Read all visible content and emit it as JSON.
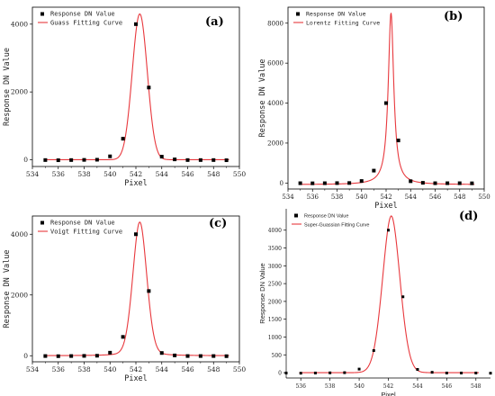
{
  "chart_data": [
    {
      "type": "scatter",
      "panel_label": "(a)",
      "xlabel": "Pixel",
      "ylabel": "Response DN Value",
      "xlim": [
        534,
        550
      ],
      "ylim": [
        -200,
        4500
      ],
      "xticks": [
        534,
        536,
        538,
        540,
        542,
        544,
        546,
        548,
        550
      ],
      "yticks": [
        0,
        2000,
        4000
      ],
      "legend_position": "top-left",
      "series": [
        {
          "name": "Response DN Value",
          "kind": "points",
          "color": "#000000",
          "x": [
            535,
            536,
            537,
            538,
            539,
            540,
            541,
            542,
            543,
            544,
            545,
            546,
            547,
            548,
            549
          ],
          "y": [
            -10,
            -15,
            -10,
            -5,
            0,
            100,
            620,
            4000,
            2130,
            90,
            10,
            -10,
            -10,
            -10,
            -15
          ]
        },
        {
          "name": "Guass Fitting Curve",
          "kind": "curve",
          "color": "#e8383d",
          "model": "gauss",
          "peak": 4300,
          "center": 542.3,
          "width": 0.58,
          "offset": 0
        }
      ]
    },
    {
      "type": "scatter",
      "panel_label": "(b)",
      "xlabel": "Pixel",
      "ylabel": "Response DN Value",
      "xlim": [
        534,
        550
      ],
      "ylim": [
        -300,
        8800
      ],
      "xticks": [
        534,
        536,
        538,
        540,
        542,
        544,
        546,
        548,
        550
      ],
      "yticks": [
        0,
        2000,
        4000,
        6000,
        8000
      ],
      "legend_position": "top-left",
      "series": [
        {
          "name": "Response DN Value",
          "kind": "points",
          "color": "#000000",
          "x": [
            535,
            536,
            537,
            538,
            539,
            540,
            541,
            542,
            543,
            544,
            545,
            546,
            547,
            548,
            549
          ],
          "y": [
            -10,
            -15,
            -10,
            -5,
            0,
            100,
            620,
            4000,
            2130,
            90,
            10,
            -10,
            -10,
            -10,
            -15
          ]
        },
        {
          "name": "Lorentz Fitting Curve",
          "kind": "curve",
          "color": "#e8383d",
          "model": "lorentz",
          "peak": 8600,
          "center": 542.4,
          "width": 0.27,
          "offset": -80
        }
      ]
    },
    {
      "type": "scatter",
      "panel_label": "(c)",
      "xlabel": "Pixel",
      "ylabel": "Response DN Value",
      "xlim": [
        534,
        550
      ],
      "ylim": [
        -200,
        4600
      ],
      "xticks": [
        534,
        536,
        538,
        540,
        542,
        544,
        546,
        548,
        550
      ],
      "yticks": [
        0,
        2000,
        4000
      ],
      "legend_position": "top-left",
      "series": [
        {
          "name": "Response DN Value",
          "kind": "points",
          "color": "#000000",
          "x": [
            535,
            536,
            537,
            538,
            539,
            540,
            541,
            542,
            543,
            544,
            545,
            546,
            547,
            548,
            549
          ],
          "y": [
            -10,
            -15,
            -10,
            -5,
            0,
            100,
            620,
            4000,
            2130,
            90,
            10,
            -10,
            -10,
            -10,
            -15
          ]
        },
        {
          "name": "Voigt Fitting Curve",
          "kind": "curve",
          "color": "#e8383d",
          "model": "voigt",
          "peak": 4400,
          "center": 542.3,
          "width": 0.55,
          "offset": 0
        }
      ]
    },
    {
      "type": "scatter",
      "panel_label": "(d)",
      "xlabel": "Pixel",
      "ylabel": "Response DN Value",
      "xlim": [
        535,
        549
      ],
      "ylim": [
        -150,
        4600
      ],
      "xticks": [
        536,
        538,
        540,
        542,
        544,
        546,
        548
      ],
      "yticks": [
        0,
        500,
        1000,
        1500,
        2000,
        2500,
        3000,
        3500,
        4000
      ],
      "legend_position": "top-left",
      "series": [
        {
          "name": "Response DN Value",
          "kind": "points",
          "color": "#000000",
          "x": [
            535,
            536,
            537,
            538,
            539,
            540,
            541,
            542,
            543,
            544,
            545,
            546,
            547,
            548,
            549
          ],
          "y": [
            -10,
            -15,
            -10,
            -5,
            0,
            100,
            620,
            4000,
            2130,
            90,
            10,
            -10,
            -10,
            -10,
            -15
          ]
        },
        {
          "name": "Super-Guassian Fitting Curve",
          "kind": "curve",
          "color": "#e8383d",
          "model": "supergauss",
          "peak": 4400,
          "center": 542.2,
          "width": 0.6,
          "power": 1.6,
          "offset": 0
        }
      ]
    }
  ]
}
